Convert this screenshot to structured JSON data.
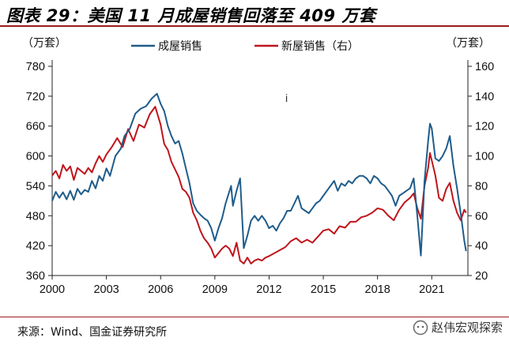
{
  "header": {
    "title": "图表 29：美国 11 月成屋销售回落至 409 万套"
  },
  "footer": {
    "source": "来源：Wind、国金证券研究所",
    "watermark": "赵伟宏观探索"
  },
  "colors": {
    "existing": "#1f5c8b",
    "new": "#c0141b",
    "accent": "#9a1b1f"
  },
  "chart_data": {
    "type": "line",
    "marker_text": "i",
    "y_left": {
      "unit_label": "（万套）",
      "range": [
        360,
        780
      ],
      "ticks": [
        "360",
        "420",
        "480",
        "540",
        "600",
        "660",
        "720",
        "780"
      ]
    },
    "y_right": {
      "unit_label": "（万套）",
      "range": [
        20,
        160
      ],
      "ticks": [
        "20",
        "40",
        "60",
        "80",
        "100",
        "120",
        "140",
        "160"
      ]
    },
    "x": {
      "range": [
        2000,
        2023
      ],
      "ticks": [
        "2000",
        "2003",
        "2006",
        "2009",
        "2012",
        "2015",
        "2018",
        "2021"
      ]
    },
    "series": [
      {
        "name": "成屋销售",
        "axis": "left",
        "points": [
          [
            2000.0,
            510
          ],
          [
            2000.2,
            528
          ],
          [
            2000.4,
            516
          ],
          [
            2000.6,
            527
          ],
          [
            2000.8,
            513
          ],
          [
            2001.0,
            530
          ],
          [
            2001.2,
            512
          ],
          [
            2001.4,
            534
          ],
          [
            2001.6,
            523
          ],
          [
            2001.8,
            532
          ],
          [
            2002.0,
            528
          ],
          [
            2002.2,
            550
          ],
          [
            2002.4,
            535
          ],
          [
            2002.6,
            560
          ],
          [
            2002.8,
            550
          ],
          [
            2003.0,
            575
          ],
          [
            2003.2,
            560
          ],
          [
            2003.5,
            600
          ],
          [
            2003.8,
            615
          ],
          [
            2004.0,
            640
          ],
          [
            2004.3,
            655
          ],
          [
            2004.6,
            685
          ],
          [
            2004.9,
            695
          ],
          [
            2005.2,
            700
          ],
          [
            2005.5,
            715
          ],
          [
            2005.8,
            725
          ],
          [
            2006.0,
            705
          ],
          [
            2006.2,
            690
          ],
          [
            2006.4,
            660
          ],
          [
            2006.6,
            640
          ],
          [
            2006.8,
            625
          ],
          [
            2007.0,
            630
          ],
          [
            2007.2,
            605
          ],
          [
            2007.4,
            575
          ],
          [
            2007.6,
            545
          ],
          [
            2007.8,
            505
          ],
          [
            2008.0,
            490
          ],
          [
            2008.2,
            482
          ],
          [
            2008.4,
            475
          ],
          [
            2008.6,
            470
          ],
          [
            2008.8,
            455
          ],
          [
            2009.0,
            430
          ],
          [
            2009.2,
            455
          ],
          [
            2009.4,
            475
          ],
          [
            2009.6,
            505
          ],
          [
            2009.9,
            540
          ],
          [
            2010.0,
            500
          ],
          [
            2010.2,
            530
          ],
          [
            2010.4,
            555
          ],
          [
            2010.6,
            415
          ],
          [
            2010.8,
            440
          ],
          [
            2011.0,
            470
          ],
          [
            2011.2,
            480
          ],
          [
            2011.4,
            470
          ],
          [
            2011.6,
            480
          ],
          [
            2011.8,
            470
          ],
          [
            2012.0,
            455
          ],
          [
            2012.2,
            460
          ],
          [
            2012.4,
            450
          ],
          [
            2012.6,
            465
          ],
          [
            2012.8,
            475
          ],
          [
            2013.0,
            490
          ],
          [
            2013.2,
            490
          ],
          [
            2013.4,
            505
          ],
          [
            2013.6,
            520
          ],
          [
            2013.8,
            495
          ],
          [
            2014.0,
            490
          ],
          [
            2014.2,
            485
          ],
          [
            2014.4,
            495
          ],
          [
            2014.6,
            505
          ],
          [
            2014.8,
            510
          ],
          [
            2015.0,
            520
          ],
          [
            2015.2,
            530
          ],
          [
            2015.4,
            540
          ],
          [
            2015.6,
            550
          ],
          [
            2015.8,
            530
          ],
          [
            2016.0,
            545
          ],
          [
            2016.2,
            540
          ],
          [
            2016.4,
            550
          ],
          [
            2016.6,
            545
          ],
          [
            2016.8,
            555
          ],
          [
            2017.0,
            560
          ],
          [
            2017.2,
            560
          ],
          [
            2017.4,
            555
          ],
          [
            2017.6,
            545
          ],
          [
            2017.8,
            560
          ],
          [
            2018.0,
            555
          ],
          [
            2018.2,
            545
          ],
          [
            2018.4,
            540
          ],
          [
            2018.6,
            530
          ],
          [
            2018.8,
            520
          ],
          [
            2019.0,
            500
          ],
          [
            2019.2,
            520
          ],
          [
            2019.4,
            525
          ],
          [
            2019.6,
            530
          ],
          [
            2019.8,
            535
          ],
          [
            2020.0,
            555
          ],
          [
            2020.2,
            480
          ],
          [
            2020.4,
            400
          ],
          [
            2020.6,
            550
          ],
          [
            2020.8,
            630
          ],
          [
            2020.9,
            665
          ],
          [
            2021.0,
            655
          ],
          [
            2021.2,
            595
          ],
          [
            2021.4,
            590
          ],
          [
            2021.6,
            600
          ],
          [
            2021.8,
            615
          ],
          [
            2022.0,
            640
          ],
          [
            2022.2,
            580
          ],
          [
            2022.4,
            535
          ],
          [
            2022.6,
            485
          ],
          [
            2022.8,
            430
          ],
          [
            2022.9,
            409
          ]
        ]
      },
      {
        "name": "新屋销售（右）",
        "axis": "right",
        "points": [
          [
            2000.0,
            87
          ],
          [
            2000.2,
            90
          ],
          [
            2000.4,
            85
          ],
          [
            2000.6,
            94
          ],
          [
            2000.8,
            90
          ],
          [
            2001.0,
            93
          ],
          [
            2001.2,
            84
          ],
          [
            2001.4,
            92
          ],
          [
            2001.6,
            90
          ],
          [
            2001.8,
            88
          ],
          [
            2002.0,
            92
          ],
          [
            2002.2,
            89
          ],
          [
            2002.4,
            95
          ],
          [
            2002.6,
            100
          ],
          [
            2002.8,
            96
          ],
          [
            2003.0,
            101
          ],
          [
            2003.3,
            106
          ],
          [
            2003.6,
            112
          ],
          [
            2003.9,
            106
          ],
          [
            2004.2,
            118
          ],
          [
            2004.5,
            110
          ],
          [
            2004.8,
            121
          ],
          [
            2005.1,
            119
          ],
          [
            2005.4,
            128
          ],
          [
            2005.7,
            133
          ],
          [
            2006.0,
            121
          ],
          [
            2006.2,
            108
          ],
          [
            2006.4,
            104
          ],
          [
            2006.6,
            96
          ],
          [
            2006.8,
            91
          ],
          [
            2007.0,
            86
          ],
          [
            2007.2,
            78
          ],
          [
            2007.4,
            76
          ],
          [
            2007.6,
            72
          ],
          [
            2007.8,
            62
          ],
          [
            2008.0,
            57
          ],
          [
            2008.2,
            50
          ],
          [
            2008.4,
            45
          ],
          [
            2008.6,
            42
          ],
          [
            2008.8,
            38
          ],
          [
            2009.0,
            32
          ],
          [
            2009.2,
            35
          ],
          [
            2009.4,
            38
          ],
          [
            2009.6,
            40
          ],
          [
            2009.8,
            38
          ],
          [
            2010.0,
            33
          ],
          [
            2010.2,
            42
          ],
          [
            2010.4,
            30
          ],
          [
            2010.6,
            28
          ],
          [
            2010.8,
            32
          ],
          [
            2011.0,
            28
          ],
          [
            2011.2,
            30
          ],
          [
            2011.4,
            31
          ],
          [
            2011.6,
            30
          ],
          [
            2011.8,
            32
          ],
          [
            2012.0,
            33
          ],
          [
            2012.3,
            35
          ],
          [
            2012.6,
            37
          ],
          [
            2012.9,
            39
          ],
          [
            2013.2,
            43
          ],
          [
            2013.5,
            45
          ],
          [
            2013.8,
            42
          ],
          [
            2014.1,
            44
          ],
          [
            2014.4,
            42
          ],
          [
            2014.7,
            46
          ],
          [
            2015.0,
            50
          ],
          [
            2015.3,
            51
          ],
          [
            2015.6,
            48
          ],
          [
            2015.9,
            53
          ],
          [
            2016.2,
            52
          ],
          [
            2016.5,
            56
          ],
          [
            2016.8,
            56
          ],
          [
            2017.1,
            59
          ],
          [
            2017.4,
            60
          ],
          [
            2017.7,
            62
          ],
          [
            2018.0,
            65
          ],
          [
            2018.3,
            64
          ],
          [
            2018.6,
            60
          ],
          [
            2018.9,
            57
          ],
          [
            2019.2,
            64
          ],
          [
            2019.5,
            69
          ],
          [
            2019.8,
            72
          ],
          [
            2020.0,
            75
          ],
          [
            2020.2,
            65
          ],
          [
            2020.4,
            58
          ],
          [
            2020.6,
            80
          ],
          [
            2020.8,
            92
          ],
          [
            2020.9,
            102
          ],
          [
            2021.0,
            97
          ],
          [
            2021.2,
            87
          ],
          [
            2021.4,
            72
          ],
          [
            2021.6,
            70
          ],
          [
            2021.8,
            78
          ],
          [
            2022.0,
            82
          ],
          [
            2022.2,
            70
          ],
          [
            2022.4,
            62
          ],
          [
            2022.6,
            57
          ],
          [
            2022.8,
            64
          ],
          [
            2022.9,
            62
          ]
        ]
      }
    ]
  }
}
